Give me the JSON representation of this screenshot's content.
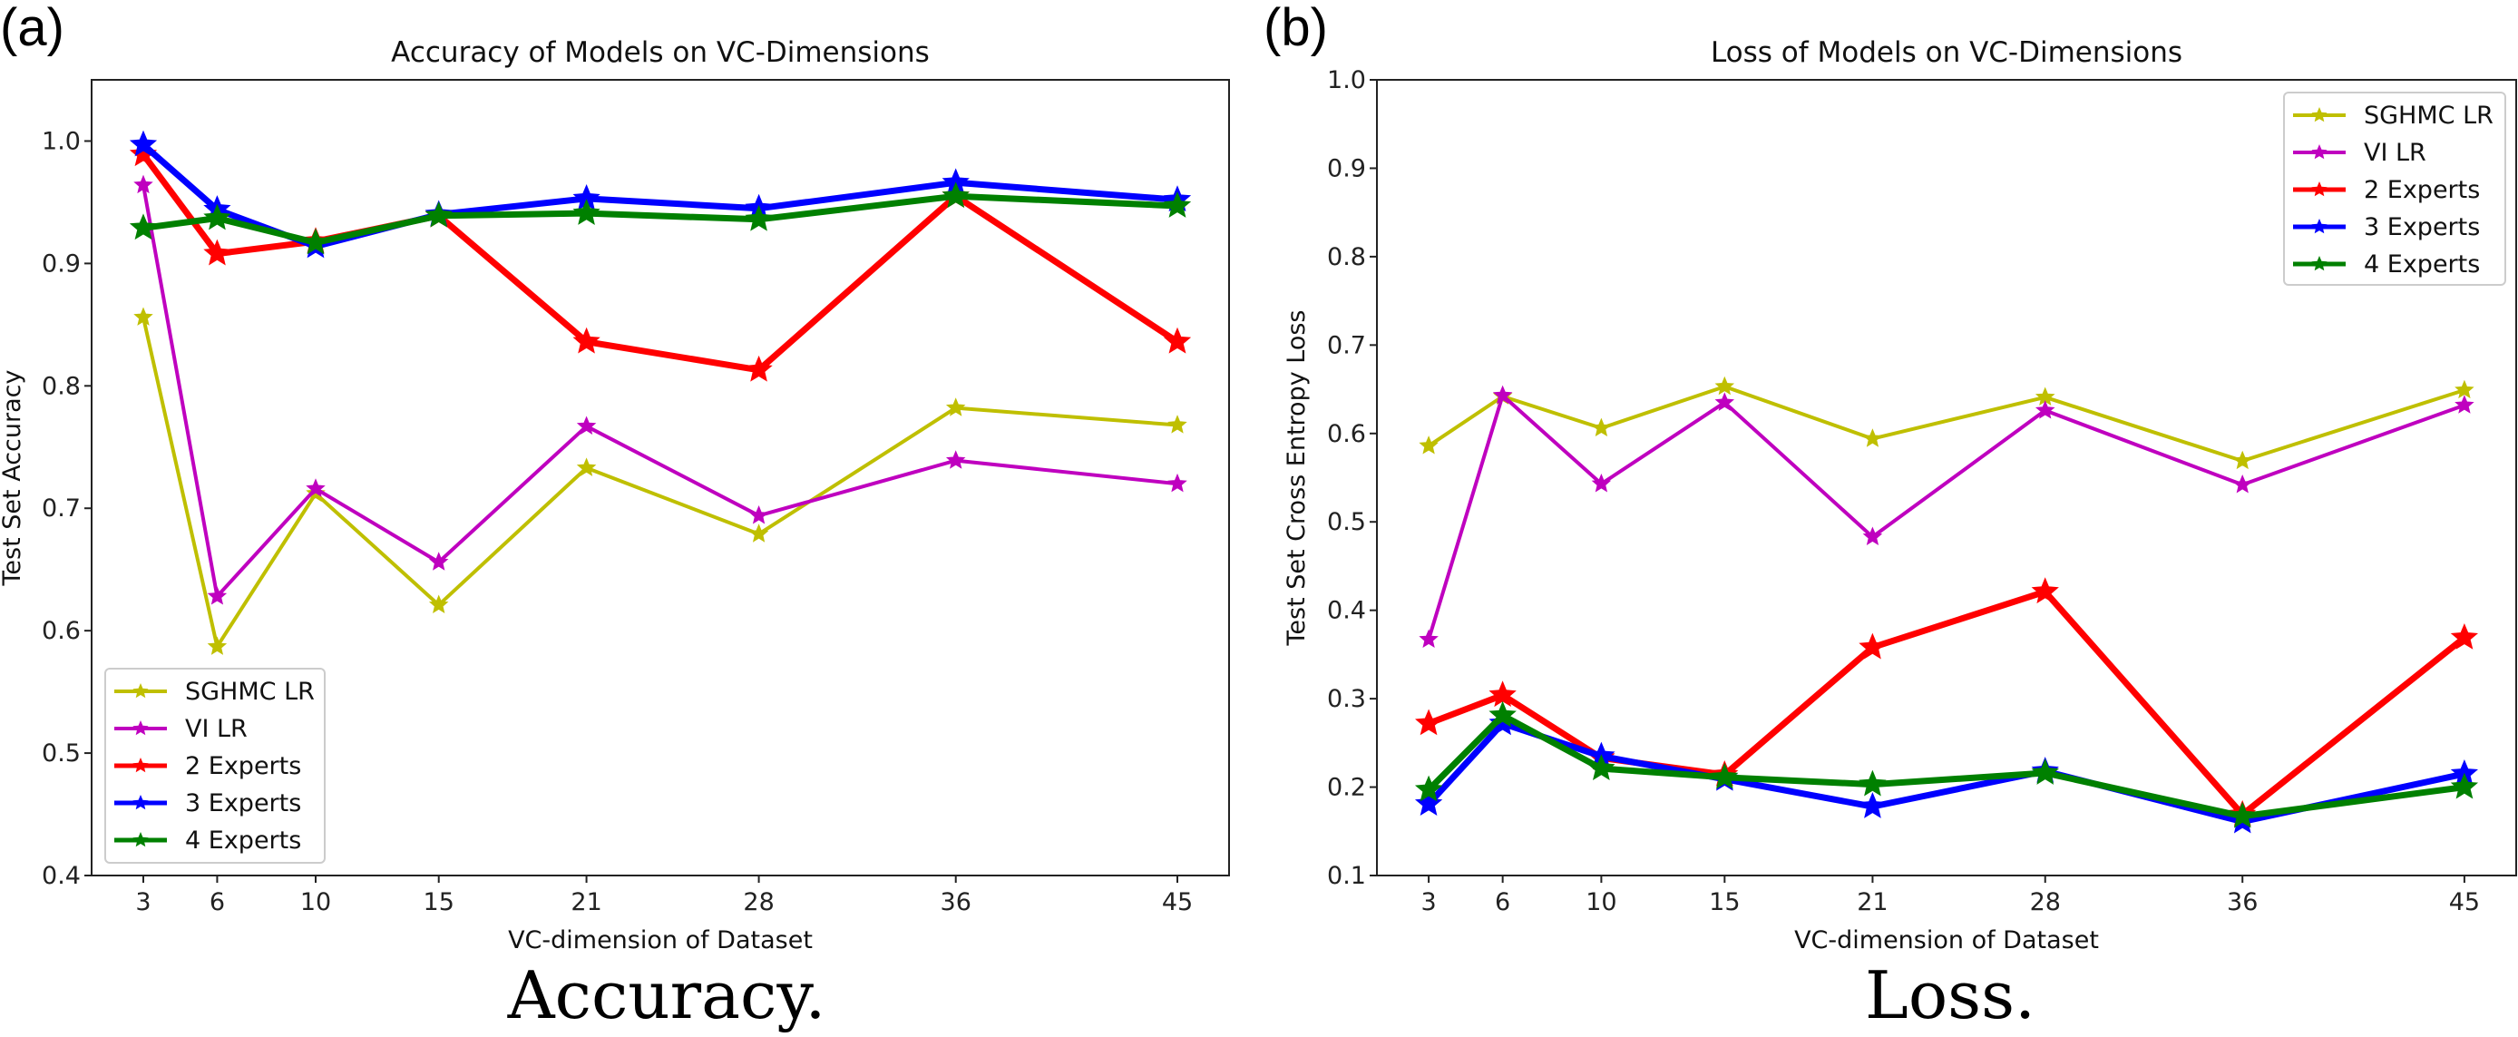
{
  "chart_data": [
    {
      "type": "line",
      "panel_label": "(a)",
      "caption": "Accuracy.",
      "title": "Accuracy of Models on VC-Dimensions",
      "xlabel": "VC-dimension of Dataset",
      "ylabel": "Test Set Accuracy",
      "x": [
        3,
        6,
        10,
        15,
        21,
        28,
        36,
        45
      ],
      "xticks": [
        "3",
        "6",
        "10",
        "15",
        "21",
        "28",
        "36",
        "45"
      ],
      "yticks": [
        "0.4",
        "0.5",
        "0.6",
        "0.7",
        "0.8",
        "0.9",
        "1.0"
      ],
      "ylim": [
        0.4,
        1.05
      ],
      "xlim": [
        0.9,
        47.1
      ],
      "grid": false,
      "legend": "lower-left",
      "marker": "star",
      "series": [
        {
          "name": "SGHMC LR",
          "color": "#bfbf00",
          "values": [
            0.856,
            0.587,
            0.712,
            0.621,
            0.733,
            0.679,
            0.782,
            0.768
          ]
        },
        {
          "name": "VI LR",
          "color": "#bf00bf",
          "values": [
            0.964,
            0.628,
            0.716,
            0.656,
            0.767,
            0.694,
            0.739,
            0.72
          ]
        },
        {
          "name": "2 Experts",
          "color": "#ff0000",
          "values": [
            0.989,
            0.908,
            0.918,
            0.939,
            0.836,
            0.813,
            0.955,
            0.836
          ]
        },
        {
          "name": "3 Experts",
          "color": "#0000ff",
          "values": [
            0.997,
            0.944,
            0.914,
            0.94,
            0.953,
            0.945,
            0.966,
            0.952
          ]
        },
        {
          "name": "4 Experts",
          "color": "#008000",
          "values": [
            0.929,
            0.937,
            0.917,
            0.939,
            0.941,
            0.936,
            0.955,
            0.947
          ]
        }
      ]
    },
    {
      "type": "line",
      "panel_label": "(b)",
      "caption": "Loss.",
      "title": "Loss of Models on VC-Dimensions",
      "xlabel": "VC-dimension of Dataset",
      "ylabel": "Test Set Cross Entropy Loss",
      "x": [
        3,
        6,
        10,
        15,
        21,
        28,
        36,
        45
      ],
      "xticks": [
        "3",
        "6",
        "10",
        "15",
        "21",
        "28",
        "36",
        "45"
      ],
      "yticks": [
        "0.1",
        "0.2",
        "0.3",
        "0.4",
        "0.5",
        "0.6",
        "0.7",
        "0.8",
        "0.9",
        "1.0"
      ],
      "ylim": [
        0.1,
        1.0
      ],
      "xlim": [
        0.9,
        47.1
      ],
      "grid": false,
      "legend": "upper-right",
      "marker": "star",
      "series": [
        {
          "name": "SGHMC LR",
          "color": "#bfbf00",
          "values": [
            0.586,
            0.642,
            0.606,
            0.653,
            0.594,
            0.641,
            0.569,
            0.649
          ]
        },
        {
          "name": "VI LR",
          "color": "#bf00bf",
          "values": [
            0.367,
            0.643,
            0.543,
            0.635,
            0.483,
            0.626,
            0.542,
            0.632
          ]
        },
        {
          "name": "2 Experts",
          "color": "#ff0000",
          "values": [
            0.272,
            0.304,
            0.233,
            0.214,
            0.358,
            0.421,
            0.169,
            0.369
          ]
        },
        {
          "name": "3 Experts",
          "color": "#0000ff",
          "values": [
            0.181,
            0.272,
            0.235,
            0.209,
            0.178,
            0.218,
            0.161,
            0.215
          ]
        },
        {
          "name": "4 Experts",
          "color": "#008000",
          "values": [
            0.197,
            0.281,
            0.221,
            0.211,
            0.203,
            0.216,
            0.167,
            0.2
          ]
        }
      ]
    }
  ]
}
